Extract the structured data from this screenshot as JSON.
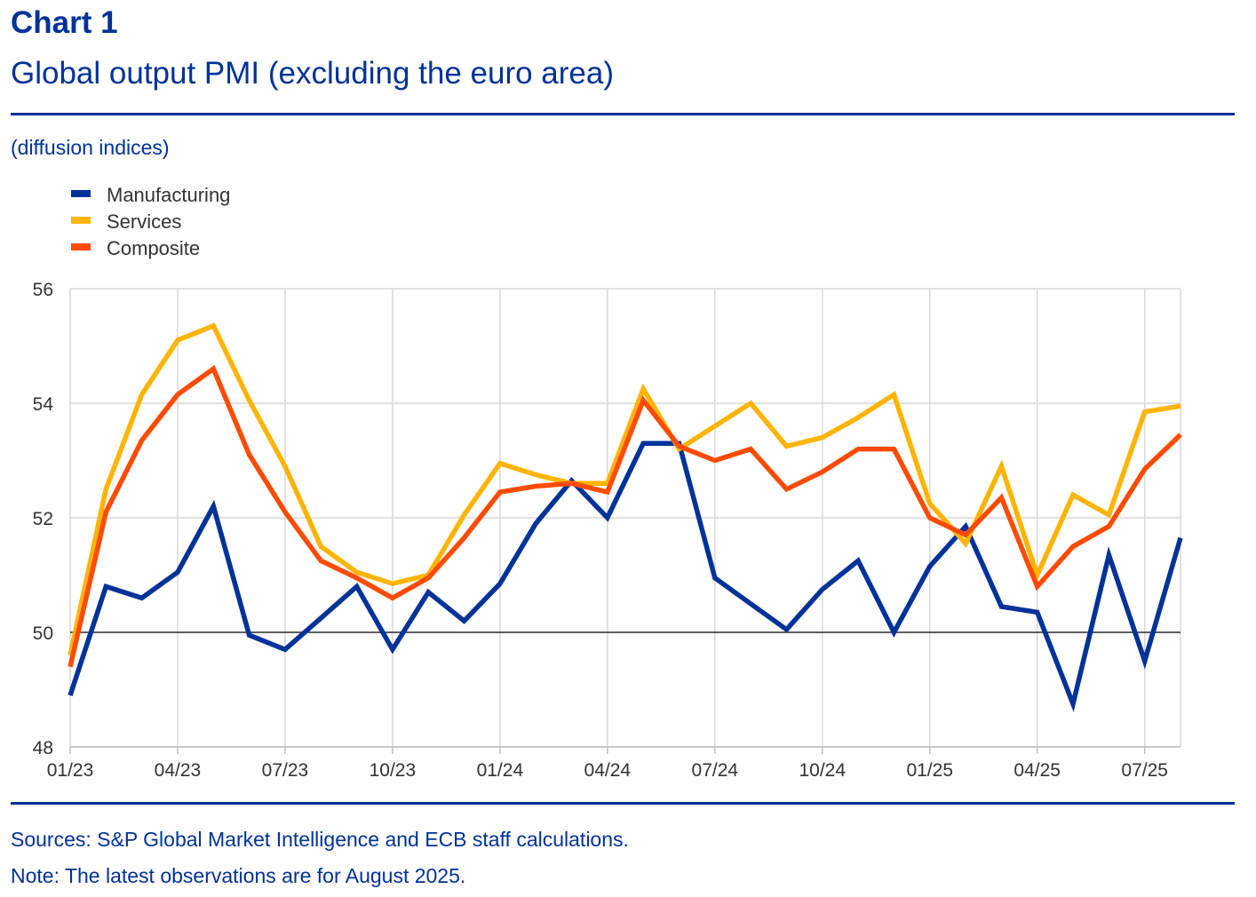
{
  "header": {
    "chart_number": "Chart 1",
    "title": "Global output PMI (excluding the euro area)",
    "units": "(diffusion indices)"
  },
  "footer": {
    "sources": "Sources: S&P Global Market Intelligence and ECB staff calculations.",
    "note": "Note: The latest observations are for August 2025."
  },
  "colors": {
    "brand": "#003299",
    "manufacturing": "#003299",
    "services": "#FFB400",
    "composite": "#FF4B00",
    "grid": "#d9d9d9",
    "reference_line": "#000000"
  },
  "chart_data": {
    "type": "line",
    "x_labels": [
      "01/23",
      "02/23",
      "03/23",
      "04/23",
      "05/23",
      "06/23",
      "07/23",
      "08/23",
      "09/23",
      "10/23",
      "11/23",
      "12/23",
      "01/24",
      "02/24",
      "03/24",
      "04/24",
      "05/24",
      "06/24",
      "07/24",
      "08/24",
      "09/24",
      "10/24",
      "11/24",
      "12/24",
      "01/25",
      "02/25",
      "03/25",
      "04/25",
      "05/25",
      "06/25",
      "07/25",
      "08/25"
    ],
    "x_tick_labels": [
      "01/23",
      "04/23",
      "07/23",
      "10/23",
      "01/24",
      "04/24",
      "07/24",
      "10/24",
      "01/25",
      "04/25",
      "07/25"
    ],
    "x_tick_indices": [
      0,
      3,
      6,
      9,
      12,
      15,
      18,
      21,
      24,
      27,
      30
    ],
    "y_ticks": [
      48,
      50,
      52,
      54,
      56
    ],
    "ylim": [
      48,
      56
    ],
    "reference_line": 50,
    "legend_position": "top-left",
    "series": [
      {
        "name": "Manufacturing",
        "color": "#003299",
        "values": [
          48.9,
          50.8,
          50.6,
          51.05,
          52.2,
          49.95,
          49.7,
          50.25,
          50.8,
          49.7,
          50.7,
          50.2,
          50.85,
          51.9,
          52.65,
          52.0,
          53.3,
          53.3,
          50.95,
          50.5,
          50.05,
          50.75,
          51.25,
          50.0,
          51.15,
          51.85,
          50.45,
          50.35,
          48.75,
          51.35,
          49.5,
          51.65
        ]
      },
      {
        "name": "Services",
        "color": "#FFB400",
        "values": [
          49.6,
          52.5,
          54.15,
          55.1,
          55.35,
          54.05,
          52.9,
          51.5,
          51.05,
          50.85,
          51.0,
          52.05,
          52.95,
          52.75,
          52.6,
          52.6,
          54.25,
          53.2,
          53.6,
          54.0,
          53.25,
          53.4,
          53.75,
          54.15,
          52.25,
          51.55,
          52.9,
          51.0,
          52.4,
          52.05,
          53.85,
          53.95
        ]
      },
      {
        "name": "Composite",
        "color": "#FF4B00",
        "values": [
          49.4,
          52.1,
          53.35,
          54.15,
          54.6,
          53.1,
          52.1,
          51.25,
          50.95,
          50.6,
          50.95,
          51.65,
          52.45,
          52.55,
          52.6,
          52.45,
          54.05,
          53.25,
          53.0,
          53.2,
          52.5,
          52.8,
          53.2,
          53.2,
          52.0,
          51.7,
          52.35,
          50.8,
          51.5,
          51.85,
          52.85,
          53.45
        ]
      }
    ]
  }
}
